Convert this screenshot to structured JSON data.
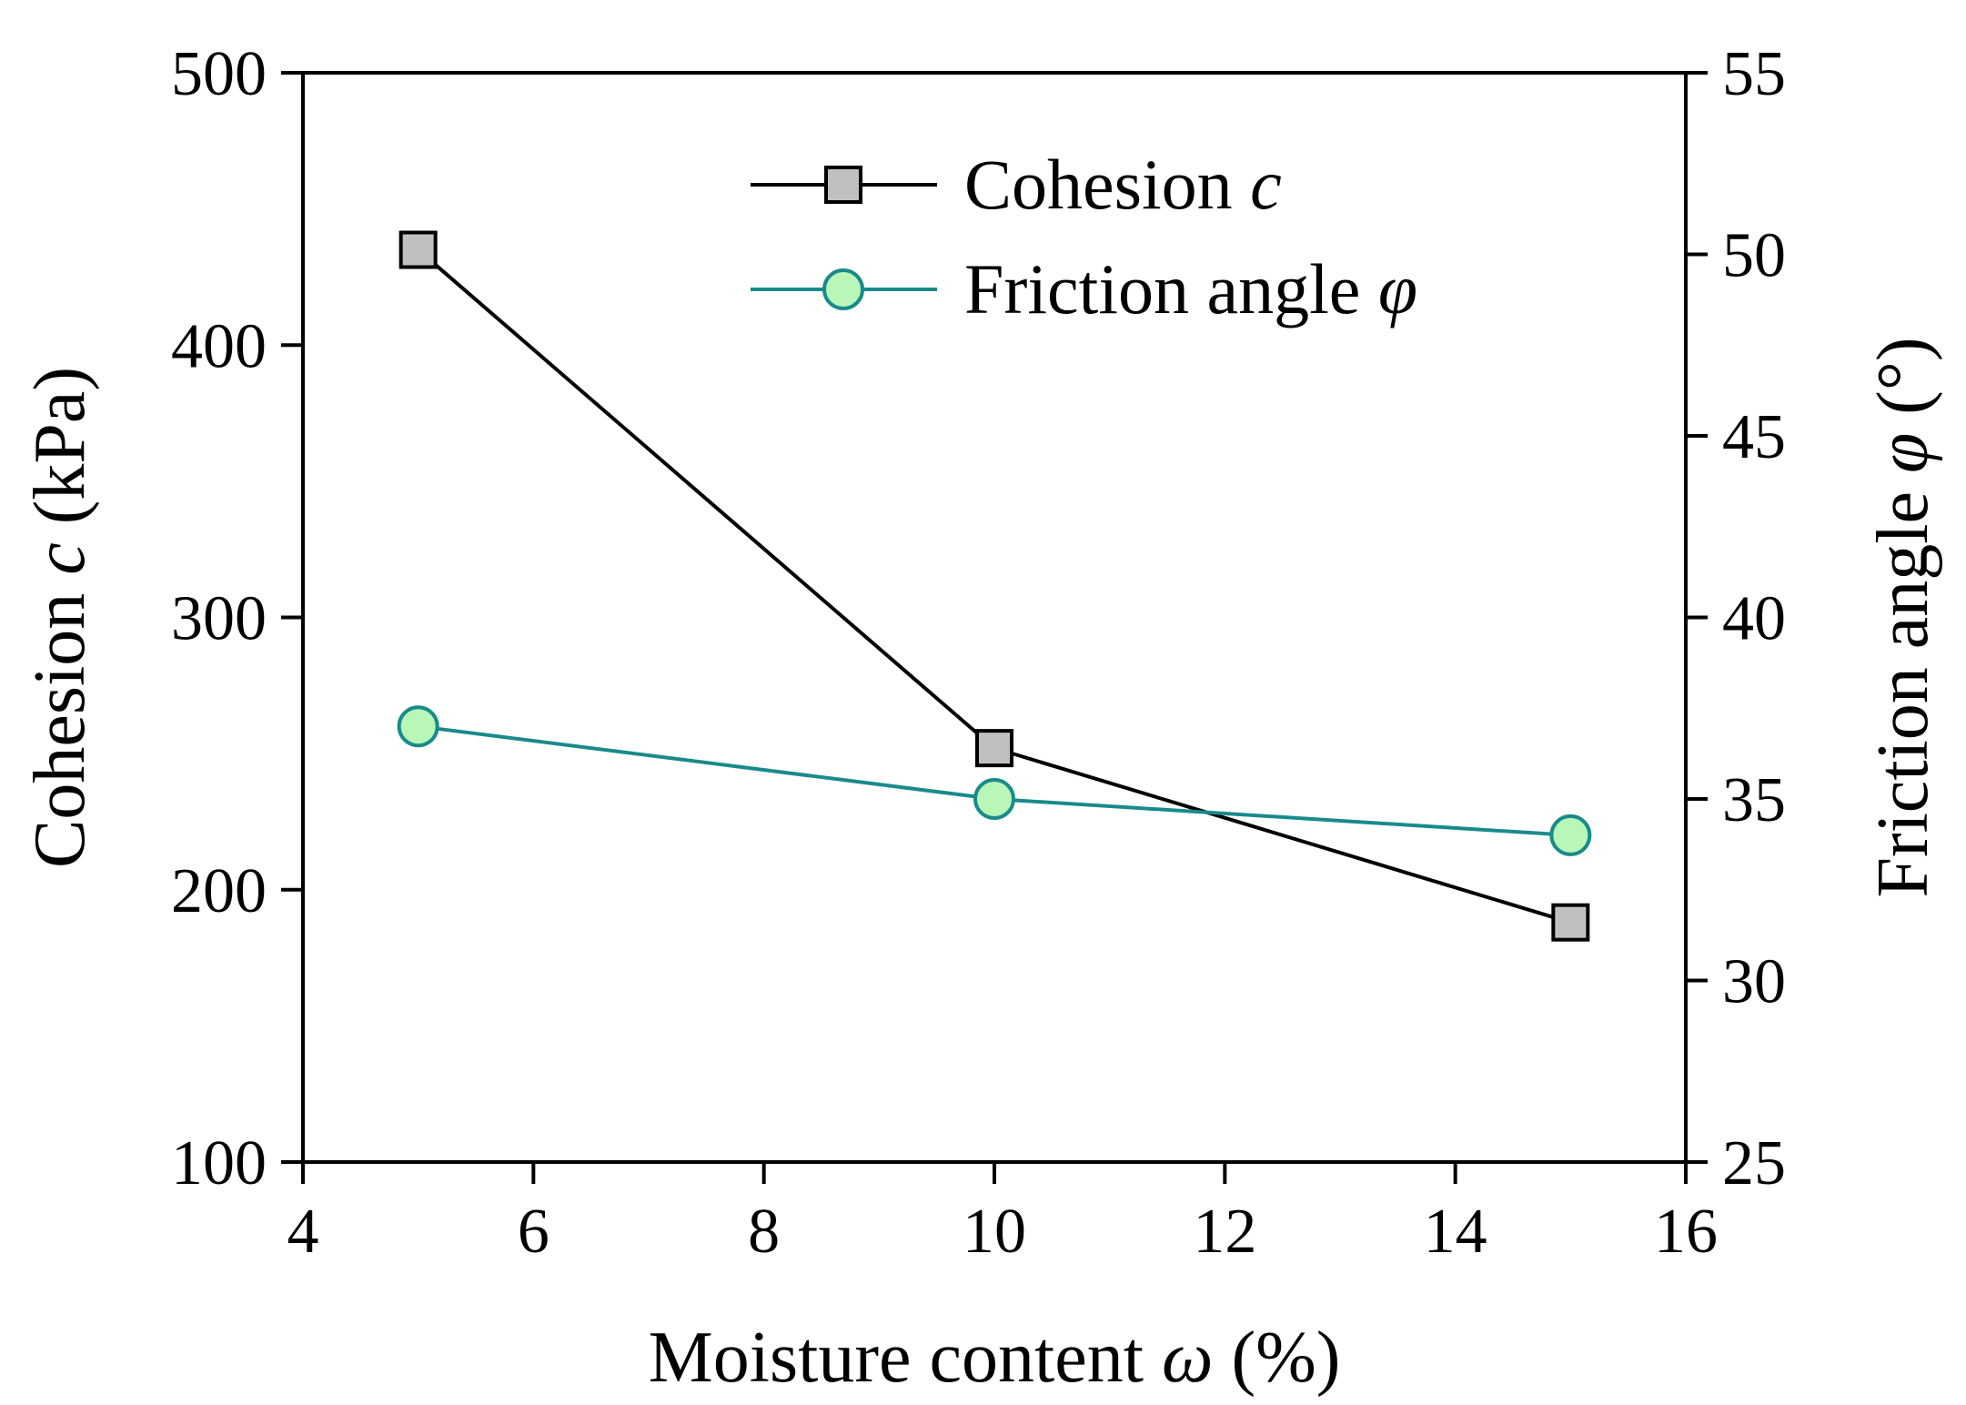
{
  "chart_data": {
    "type": "line",
    "title": "",
    "x": [
      5,
      10,
      15
    ],
    "xlabel": "Moisture content ω (%)",
    "xlabel_parts": {
      "prefix": "Moisture content ",
      "symbol": "ω",
      "suffix": " (%)"
    },
    "xlim": [
      4,
      16
    ],
    "xticks": [
      4,
      6,
      8,
      10,
      12,
      14,
      16
    ],
    "ylabel_left": "Cohesion c (kPa)",
    "ylabel_left_parts": {
      "prefix": "Cohesion ",
      "symbol": "c",
      "suffix": " (kPa)"
    },
    "ylim_left": [
      100,
      500
    ],
    "yticks_left": [
      100,
      200,
      300,
      400,
      500
    ],
    "ylabel_right": "Friction angle φ (°)",
    "ylabel_right_parts": {
      "prefix": "Friction angle ",
      "symbol": "φ",
      "suffix": " (°)"
    },
    "ylim_right": [
      25,
      55
    ],
    "yticks_right": [
      25,
      30,
      35,
      40,
      45,
      50,
      55
    ],
    "series": [
      {
        "name": "Cohesion c",
        "name_parts": {
          "prefix": "Cohesion ",
          "symbol": "c"
        },
        "axis": "left",
        "marker": "square",
        "values": [
          435,
          252,
          188
        ],
        "line_color": "#000000",
        "marker_fill": "#c0c0c0",
        "marker_stroke": "#000000"
      },
      {
        "name": "Friction angle φ",
        "name_parts": {
          "prefix": "Friction angle ",
          "symbol": "φ"
        },
        "axis": "right",
        "marker": "circle",
        "values": [
          37.0,
          35.0,
          34.0
        ],
        "line_color": "#1a8a8a",
        "marker_fill": "#b8f7b8",
        "marker_stroke": "#1a8a8a"
      }
    ],
    "legend": "top-center",
    "grid": false
  }
}
